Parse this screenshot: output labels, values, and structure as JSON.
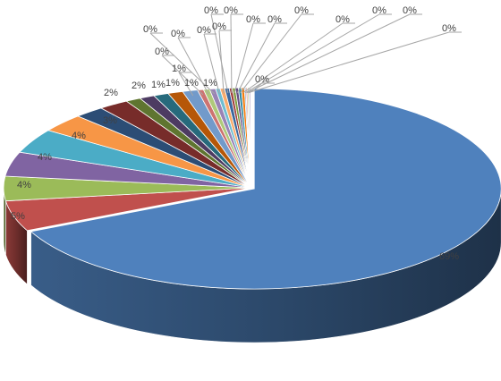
{
  "chart_data": {
    "type": "pie",
    "title": "",
    "style": "3d-exploded-first-slice",
    "legend": "none",
    "slices": [
      {
        "value": 69,
        "label": "69%",
        "color": "#4f81bd"
      },
      {
        "value": 5,
        "label": "5%",
        "color": "#c0504d"
      },
      {
        "value": 4,
        "label": "4%",
        "color": "#9bbb59"
      },
      {
        "value": 4,
        "label": "4%",
        "color": "#8064a2"
      },
      {
        "value": 4,
        "label": "4%",
        "color": "#4bacc6"
      },
      {
        "value": 3,
        "label": "3%",
        "color": "#f79646"
      },
      {
        "value": 2,
        "label": "2%",
        "color": "#2c4d75"
      },
      {
        "value": 2,
        "label": "2%",
        "color": "#772c2a"
      },
      {
        "value": 1,
        "label": "1%",
        "color": "#5f7530"
      },
      {
        "value": 1,
        "label": "1%",
        "color": "#4d3b62"
      },
      {
        "value": 1,
        "label": "1%",
        "color": "#276a7c"
      },
      {
        "value": 1,
        "label": "1%",
        "color": "#b65708"
      },
      {
        "value": 1,
        "label": "1%",
        "color": "#729aca"
      },
      {
        "value": 0.4,
        "label": "0%",
        "color": "#cd7371"
      },
      {
        "value": 0.4,
        "label": "0%",
        "color": "#afc97a"
      },
      {
        "value": 0.4,
        "label": "0%",
        "color": "#9983b5"
      },
      {
        "value": 0.3,
        "label": "0%",
        "color": "#6fbdd1"
      },
      {
        "value": 0.3,
        "label": "0%",
        "color": "#f9ab6b"
      },
      {
        "value": 0.3,
        "label": "0%",
        "color": "#3a679c"
      },
      {
        "value": 0.2,
        "label": "0%",
        "color": "#9f3b38"
      },
      {
        "value": 0.2,
        "label": "0%",
        "color": "#7f9c40"
      },
      {
        "value": 0.2,
        "label": "0%",
        "color": "#664f83"
      },
      {
        "value": 0.2,
        "label": "0%",
        "color": "#358ca5"
      },
      {
        "value": 0.2,
        "label": "0%",
        "color": "#f37b0c"
      },
      {
        "value": 0.1,
        "label": "0%",
        "color": "#95b3d7"
      },
      {
        "value": 0.1,
        "label": "0%",
        "color": "#d99694"
      },
      {
        "value": 0.1,
        "label": "0%",
        "color": "#c3d69b"
      },
      {
        "value": 0.1,
        "label": "0%",
        "color": "#b2a2c7"
      }
    ]
  }
}
